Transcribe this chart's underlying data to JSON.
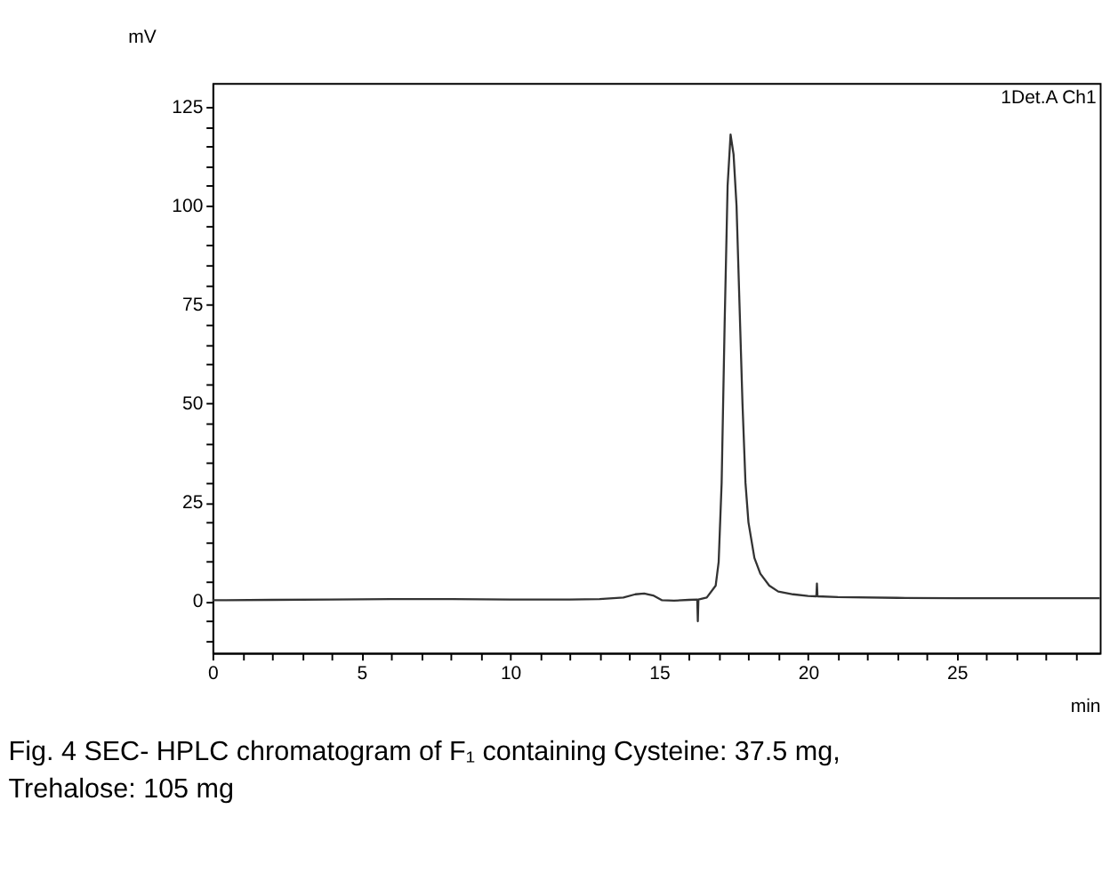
{
  "chart_data": {
    "type": "line",
    "xlabel": "min",
    "ylabel": "mV",
    "annotations": [
      "1Det.A Ch1",
      "Fig. 4 SEC- HPLC chromatogram of F₁ containing Cysteine: 37.5 mg, Trehalose: 105 mg"
    ],
    "x": [
      0,
      2,
      4,
      6,
      8,
      10,
      12,
      13,
      13.8,
      14.2,
      14.5,
      14.8,
      15.1,
      15.5,
      16,
      16.28,
      16.3,
      16.32,
      16.6,
      16.9,
      17.0,
      17.1,
      17.2,
      17.3,
      17.4,
      17.5,
      17.6,
      17.7,
      17.8,
      17.9,
      18.0,
      18.2,
      18.4,
      18.7,
      19.0,
      19.5,
      20.0,
      20.28,
      20.3,
      20.32,
      21,
      23,
      25,
      27,
      29.8
    ],
    "series": [
      {
        "color": "#333333",
        "values": [
          0.3,
          0.4,
          0.5,
          0.6,
          0.6,
          0.5,
          0.5,
          0.6,
          1.0,
          1.8,
          2.0,
          1.5,
          0.3,
          0.2,
          0.4,
          0.5,
          -5,
          0.5,
          1,
          4,
          10,
          30,
          70,
          105,
          118,
          113,
          100,
          75,
          50,
          30,
          20,
          11,
          7,
          4,
          2.5,
          1.8,
          1.4,
          1.3,
          4.5,
          1.3,
          1.1,
          0.9,
          0.8,
          0.8,
          0.8
        ]
      }
    ],
    "xlim": [
      0,
      29.8
    ],
    "ylim": [
      -13,
      131
    ],
    "xticks": [
      0,
      {
        "value": 1,
        "label": null
      },
      {
        "value": 2,
        "label": null
      },
      {
        "value": 3,
        "label": null
      },
      {
        "value": 4,
        "label": null
      },
      5,
      {
        "value": 6,
        "label": null
      },
      {
        "value": 7,
        "label": null
      },
      {
        "value": 8,
        "label": null
      },
      {
        "value": 9,
        "label": null
      },
      10,
      {
        "value": 11,
        "label": null
      },
      {
        "value": 12,
        "label": null
      },
      {
        "value": 13,
        "label": null
      },
      {
        "value": 14,
        "label": null
      },
      15,
      {
        "value": 16,
        "label": null
      },
      {
        "value": 17,
        "label": null
      },
      {
        "value": 18,
        "label": null
      },
      {
        "value": 19,
        "label": null
      },
      20,
      {
        "value": 21,
        "label": null
      },
      {
        "value": 22,
        "label": null
      },
      {
        "value": 23,
        "label": null
      },
      {
        "value": 24,
        "label": null
      },
      25,
      {
        "value": 26,
        "label": null
      },
      {
        "value": 27,
        "label": null
      },
      {
        "value": 28,
        "label": null
      },
      {
        "value": 29,
        "label": null
      }
    ],
    "yticks": [
      {
        "value": -10,
        "label": null
      },
      {
        "value": -5,
        "label": null
      },
      0,
      {
        "value": 5,
        "label": null
      },
      {
        "value": 10,
        "label": null
      },
      {
        "value": 15,
        "label": null
      },
      {
        "value": 20,
        "label": null
      },
      25,
      {
        "value": 30,
        "label": null
      },
      {
        "value": 35,
        "label": null
      },
      {
        "value": 40,
        "label": null
      },
      {
        "value": 45,
        "label": null
      },
      50,
      {
        "value": 55,
        "label": null
      },
      {
        "value": 60,
        "label": null
      },
      {
        "value": 65,
        "label": null
      },
      {
        "value": 70,
        "label": null
      },
      75,
      {
        "value": 80,
        "label": null
      },
      {
        "value": 85,
        "label": null
      },
      {
        "value": 90,
        "label": null
      },
      {
        "value": 95,
        "label": null
      },
      100,
      {
        "value": 105,
        "label": null
      },
      {
        "value": 110,
        "label": null
      },
      {
        "value": 115,
        "label": null
      },
      {
        "value": 120,
        "label": null
      },
      125
    ],
    "grid": false,
    "legend": false,
    "marker": "none",
    "line_style": "solid"
  }
}
